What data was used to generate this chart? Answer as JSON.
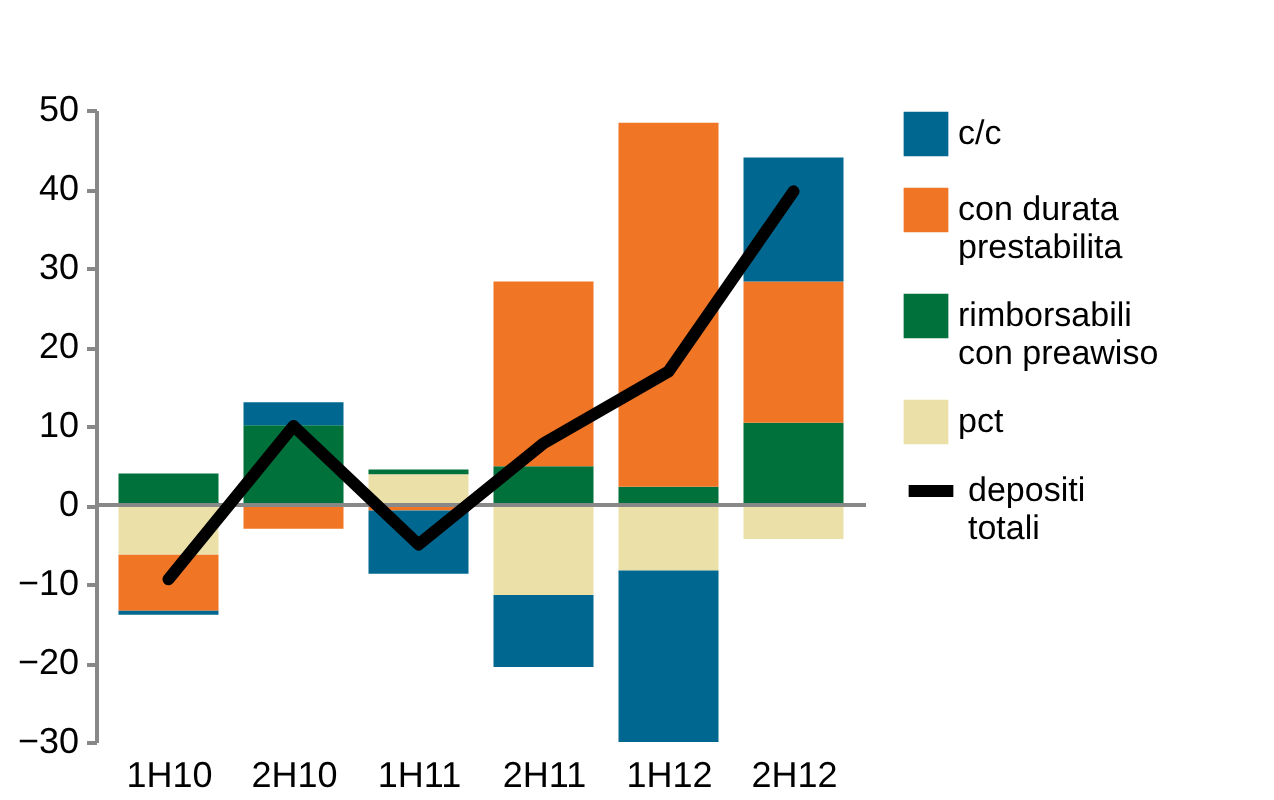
{
  "chart_data": {
    "type": "bar",
    "stacked": true,
    "categories": [
      "1H10",
      "2H10",
      "1H11",
      "2H11",
      "1H12",
      "2H12"
    ],
    "series": [
      {
        "name": "pct",
        "color": "#ebe0a8",
        "values": [
          -6.3,
          0,
          3.9,
          -11.4,
          -8.3,
          -4.3
        ]
      },
      {
        "name": "rimborsabili con preawiso",
        "color": "#00713a",
        "values": [
          4,
          10.1,
          0.6,
          4.9,
          2.3,
          10.4
        ]
      },
      {
        "name": "con durata prestabilita",
        "color": "#f07525",
        "values": [
          -7.1,
          -3,
          -0.7,
          23.4,
          46.1,
          17.9
        ]
      },
      {
        "name": "c/c",
        "color": "#006890",
        "values": [
          -0.5,
          2.9,
          -8,
          -9.1,
          -21.7,
          15.7
        ]
      },
      {
        "name": "depositi totali",
        "type": "line",
        "color": "#000000",
        "values": [
          -9.4,
          10,
          -5,
          7.8,
          16.9,
          39.7
        ]
      }
    ],
    "ylim": [
      -30,
      50
    ],
    "yticks": [
      -30,
      -20,
      -10,
      0,
      10,
      20,
      30,
      40,
      50
    ],
    "legend": "right",
    "marker": "none"
  }
}
